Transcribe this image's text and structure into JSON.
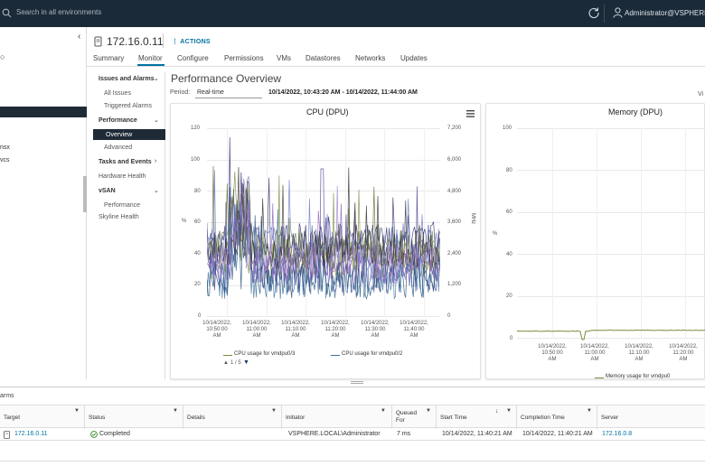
{
  "topbar": {
    "search_placeholder": "Search in all environments",
    "user": "Administrator@VSPHERE.LOCAL"
  },
  "leftnav": {
    "items": [
      "nsx",
      "vcs"
    ]
  },
  "header": {
    "title": "172.16.0.11",
    "actions": "ACTIONS"
  },
  "tabs": [
    "Summary",
    "Monitor",
    "Configure",
    "Permissions",
    "VMs",
    "Datastores",
    "Networks",
    "Updates"
  ],
  "subnav": {
    "issues": "Issues and Alarms",
    "all_issues": "All Issues",
    "triggered_alarms": "Triggered Alarms",
    "performance": "Performance",
    "overview": "Overview",
    "advanced": "Advanced",
    "tasks_events": "Tasks and Events",
    "hardware_health": "Hardware Health",
    "vsan": "vSAN",
    "vsan_performance": "Performance",
    "skyline_health": "Skyline Health"
  },
  "performance": {
    "title": "Performance Overview",
    "period_label": "Period:",
    "period_value": "Real-time",
    "range": "10/14/2022, 10:43:20 AM - 10/14/2022, 11:44:00 AM",
    "view_label": "Vi"
  },
  "cpu_chart": {
    "title": "CPU (DPU)",
    "y_left_label": "%",
    "y_right_label": "MHz",
    "y_left_ticks": [
      "120",
      "100",
      "80",
      "60",
      "40",
      "20",
      "0"
    ],
    "y_right_ticks": [
      "7,200",
      "6,000",
      "4,800",
      "3,600",
      "2,400",
      "1,200",
      "0"
    ],
    "x_ticks": [
      [
        "10/14/2022,",
        "10:50:00",
        "AM"
      ],
      [
        "10/14/2022,",
        "11:00:00",
        "AM"
      ],
      [
        "10/14/2022,",
        "11:10:00",
        "AM"
      ],
      [
        "10/14/2022,",
        "11:20:00",
        "AM"
      ],
      [
        "10/14/2022,",
        "11:30:00",
        "AM"
      ],
      [
        "10/14/2022,",
        "11:40:00",
        "AM"
      ]
    ],
    "legend": [
      "CPU usage for vmdpu0/3",
      "CPU usage for vmdpu0/2"
    ],
    "legend_colors": [
      "#7d8a3c",
      "#3a6f9c"
    ],
    "pager": "1 / 5"
  },
  "memory_chart": {
    "title": "Memory (DPU)",
    "y_label": "%",
    "y_ticks": [
      "100",
      "80",
      "60",
      "40",
      "20",
      "0"
    ],
    "x_ticks": [
      [
        "10/14/2022,",
        "10:50:00",
        "AM"
      ],
      [
        "10/14/2022,",
        "11:00:00",
        "AM"
      ],
      [
        "10/14/2022,",
        "11:10:00",
        "AM"
      ],
      [
        "10/14/2022,",
        "11:20:00",
        "AM"
      ]
    ],
    "legend": "Memory usage for vmdpu0"
  },
  "tasks": {
    "tab": "arms",
    "columns": [
      "Target",
      "Status",
      "Details",
      "Initiator",
      "Queued For",
      "Start Time",
      "Completion Time",
      "Server"
    ],
    "rows": [
      {
        "target": "172.16.0.11",
        "status": "Completed",
        "details": "",
        "initiator": "VSPHERE.LOCAL\\Administrator",
        "queued": "7 ms",
        "start": "10/14/2022, 11:40:21 AM",
        "completion": "10/14/2022, 11:40:21 AM",
        "server": "172.16.0.8"
      }
    ]
  },
  "colors": {
    "topbar": "#1b2a38",
    "accent": "#0072a3",
    "success": "#3c8527"
  }
}
